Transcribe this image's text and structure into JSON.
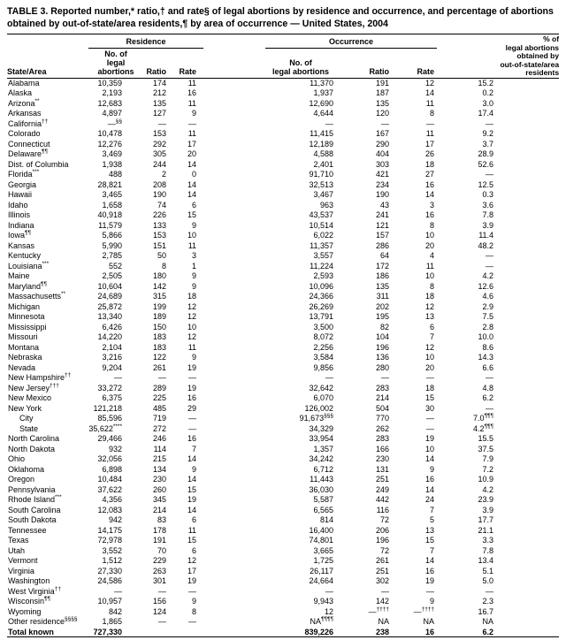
{
  "table": {
    "title": "TABLE 3. Reported number,* ratio,† and rate§ of legal abortions by residence and occurrence, and percentage of abortions obtained by out-of-state/area residents,¶ by area of occurrence — United States, 2004",
    "groups": {
      "residence": "Residence",
      "occurrence": "Occurrence",
      "pct": "% of\nlegal abortions\nobtained by\nout-of-state/area\nresidents"
    },
    "headers": {
      "state": "State/Area",
      "no": "No. of\nlegal abortions",
      "ratio": "Ratio",
      "rate": "Rate"
    },
    "rows": [
      {
        "c": [
          "Alabama",
          "10,359",
          "174",
          "11",
          "11,370",
          "191",
          "12",
          "15.2"
        ]
      },
      {
        "c": [
          "Alaska",
          "2,193",
          "212",
          "16",
          "1,937",
          "187",
          "14",
          "0.2"
        ]
      },
      {
        "c": [
          "Arizona**",
          "12,683",
          "135",
          "11",
          "12,690",
          "135",
          "11",
          "3.0"
        ]
      },
      {
        "c": [
          "Arkansas",
          "4,897",
          "127",
          "9",
          "4,644",
          "120",
          "8",
          "17.4"
        ]
      },
      {
        "c": [
          "California††",
          "—§§",
          "—",
          "—",
          "—",
          "—",
          "—",
          "—"
        ]
      },
      {
        "c": [
          "Colorado",
          "10,478",
          "153",
          "11",
          "11,415",
          "167",
          "11",
          "9.2"
        ]
      },
      {
        "c": [
          "Connecticut",
          "12,276",
          "292",
          "17",
          "12,189",
          "290",
          "17",
          "3.7"
        ]
      },
      {
        "c": [
          "Delaware¶¶",
          "3,469",
          "305",
          "20",
          "4,588",
          "404",
          "26",
          "28.9"
        ]
      },
      {
        "c": [
          "Dist. of Columbia",
          "1,938",
          "244",
          "14",
          "2,401",
          "303",
          "18",
          "52.6"
        ]
      },
      {
        "c": [
          "Florida***",
          "488",
          "2",
          "0",
          "91,710",
          "421",
          "27",
          "—"
        ]
      },
      {
        "c": [
          "Georgia",
          "28,821",
          "208",
          "14",
          "32,513",
          "234",
          "16",
          "12.5"
        ]
      },
      {
        "c": [
          "Hawaii",
          "3,465",
          "190",
          "14",
          "3,467",
          "190",
          "14",
          "0.3"
        ]
      },
      {
        "c": [
          "Idaho",
          "1,658",
          "74",
          "6",
          "963",
          "43",
          "3",
          "3.6"
        ]
      },
      {
        "c": [
          "Illinois",
          "40,918",
          "226",
          "15",
          "43,537",
          "241",
          "16",
          "7.8"
        ]
      },
      {
        "c": [
          "Indiana",
          "11,579",
          "133",
          "9",
          "10,514",
          "121",
          "8",
          "3.9"
        ]
      },
      {
        "c": [
          "Iowa¶¶",
          "5,866",
          "153",
          "10",
          "6,022",
          "157",
          "10",
          "11.4"
        ]
      },
      {
        "c": [
          "Kansas",
          "5,990",
          "151",
          "11",
          "11,357",
          "286",
          "20",
          "48.2"
        ]
      },
      {
        "c": [
          "Kentucky",
          "2,785",
          "50",
          "3",
          "3,557",
          "64",
          "4",
          "—"
        ]
      },
      {
        "c": [
          "Louisiana***",
          "552",
          "8",
          "1",
          "11,224",
          "172",
          "11",
          "—"
        ]
      },
      {
        "c": [
          "Maine",
          "2,505",
          "180",
          "9",
          "2,593",
          "186",
          "10",
          "4.2"
        ]
      },
      {
        "c": [
          "Maryland¶¶",
          "10,604",
          "142",
          "9",
          "10,096",
          "135",
          "8",
          "12.6"
        ]
      },
      {
        "c": [
          "Massachusetts**",
          "24,689",
          "315",
          "18",
          "24,366",
          "311",
          "18",
          "4.6"
        ]
      },
      {
        "c": [
          "Michigan",
          "25,872",
          "199",
          "12",
          "26,269",
          "202",
          "12",
          "2.9"
        ]
      },
      {
        "c": [
          "Minnesota",
          "13,340",
          "189",
          "12",
          "13,791",
          "195",
          "13",
          "7.5"
        ]
      },
      {
        "c": [
          "Mississippi",
          "6,426",
          "150",
          "10",
          "3,500",
          "82",
          "6",
          "2.8"
        ]
      },
      {
        "c": [
          "Missouri",
          "14,220",
          "183",
          "12",
          "8,072",
          "104",
          "7",
          "10.0"
        ]
      },
      {
        "c": [
          "Montana",
          "2,104",
          "183",
          "11",
          "2,256",
          "196",
          "12",
          "8.6"
        ]
      },
      {
        "c": [
          "Nebraska",
          "3,216",
          "122",
          "9",
          "3,584",
          "136",
          "10",
          "14.3"
        ]
      },
      {
        "c": [
          "Nevada",
          "9,204",
          "261",
          "19",
          "9,856",
          "280",
          "20",
          "6.6"
        ]
      },
      {
        "c": [
          "New Hampshire††",
          "—",
          "—",
          "—",
          "—",
          "—",
          "—",
          "—"
        ]
      },
      {
        "c": [
          "New Jersey†††",
          "33,272",
          "289",
          "19",
          "32,642",
          "283",
          "18",
          "4.8"
        ]
      },
      {
        "c": [
          "New Mexico",
          "6,375",
          "225",
          "16",
          "6,070",
          "214",
          "15",
          "6.2"
        ]
      },
      {
        "c": [
          "New York",
          "121,218",
          "485",
          "29",
          "126,002",
          "504",
          "30",
          "—"
        ]
      },
      {
        "c": [
          "City",
          "85,596",
          "719",
          "—",
          "91,673§§§",
          "770",
          "—",
          "7.0¶¶¶"
        ],
        "indent": true
      },
      {
        "c": [
          "State",
          "35,622****",
          "272",
          "—",
          "34,329",
          "262",
          "—",
          "4.2¶¶¶"
        ],
        "indent": true
      },
      {
        "c": [
          "North Carolina",
          "29,466",
          "246",
          "16",
          "33,954",
          "283",
          "19",
          "15.5"
        ]
      },
      {
        "c": [
          "North Dakota",
          "932",
          "114",
          "7",
          "1,357",
          "166",
          "10",
          "37.5"
        ]
      },
      {
        "c": [
          "Ohio",
          "32,056",
          "215",
          "14",
          "34,242",
          "230",
          "14",
          "7.9"
        ]
      },
      {
        "c": [
          "Oklahoma",
          "6,898",
          "134",
          "9",
          "6,712",
          "131",
          "9",
          "7.2"
        ]
      },
      {
        "c": [
          "Oregon",
          "10,484",
          "230",
          "14",
          "11,443",
          "251",
          "16",
          "10.9"
        ]
      },
      {
        "c": [
          "Pennsylvania",
          "37,622",
          "260",
          "15",
          "36,030",
          "249",
          "14",
          "4.2"
        ]
      },
      {
        "c": [
          "Rhode Island***",
          "4,356",
          "345",
          "19",
          "5,587",
          "442",
          "24",
          "23.9"
        ]
      },
      {
        "c": [
          "South Carolina",
          "12,083",
          "214",
          "14",
          "6,565",
          "116",
          "7",
          "3.9"
        ]
      },
      {
        "c": [
          "South Dakota",
          "942",
          "83",
          "6",
          "814",
          "72",
          "5",
          "17.7"
        ]
      },
      {
        "c": [
          "Tennessee",
          "14,175",
          "178",
          "11",
          "16,400",
          "206",
          "13",
          "21.1"
        ]
      },
      {
        "c": [
          "Texas",
          "72,978",
          "191",
          "15",
          "74,801",
          "196",
          "15",
          "3.3"
        ]
      },
      {
        "c": [
          "Utah",
          "3,552",
          "70",
          "6",
          "3,665",
          "72",
          "7",
          "7.8"
        ]
      },
      {
        "c": [
          "Vermont",
          "1,512",
          "229",
          "12",
          "1,725",
          "261",
          "14",
          "13.4"
        ]
      },
      {
        "c": [
          "Virginia",
          "27,330",
          "263",
          "17",
          "26,117",
          "251",
          "16",
          "5.1"
        ]
      },
      {
        "c": [
          "Washington",
          "24,586",
          "301",
          "19",
          "24,664",
          "302",
          "19",
          "5.0"
        ]
      },
      {
        "c": [
          "West Virginia††",
          "—",
          "—",
          "—",
          "—",
          "—",
          "—",
          "—"
        ]
      },
      {
        "c": [
          "Wisconsin¶¶",
          "10,957",
          "156",
          "9",
          "9,943",
          "142",
          "9",
          "2.3"
        ]
      },
      {
        "c": [
          "Wyoming",
          "842",
          "124",
          "8",
          "12",
          "—††††",
          "—††††",
          "16.7"
        ]
      },
      {
        "c": [
          "Other residence§§§§",
          "1,865",
          "—",
          "—",
          "NA¶¶¶¶",
          "NA",
          "NA",
          "NA"
        ]
      },
      {
        "c": [
          "Total known",
          "727,330",
          "",
          "",
          "839,226",
          "238",
          "16",
          "6.2"
        ],
        "bold": true
      }
    ]
  }
}
